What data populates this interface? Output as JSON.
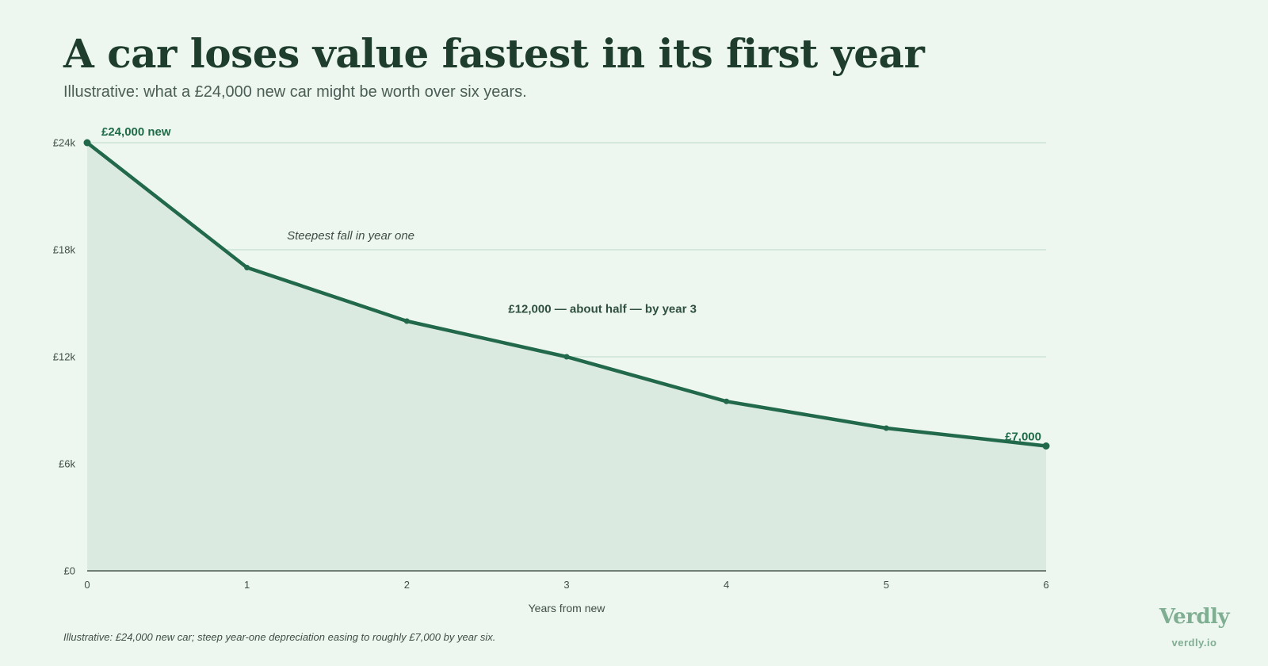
{
  "header": {
    "title": "A car loses value fastest in its first year",
    "subtitle": "Illustrative: what a £24,000 new car might be worth over six years."
  },
  "chart_data": {
    "type": "area",
    "xlabel": "Years from new",
    "ylabel": "",
    "x": [
      0,
      1,
      2,
      3,
      4,
      5,
      6
    ],
    "series": [
      {
        "values": [
          24000,
          17000,
          14000,
          12000,
          9500,
          8000,
          7000
        ]
      }
    ],
    "xlim": [
      0,
      6
    ],
    "ylim": [
      0,
      24000
    ],
    "x_ticks": [
      "0",
      "1",
      "2",
      "3",
      "4",
      "5",
      "6"
    ],
    "y_ticks": [
      {
        "value": 0,
        "label": "£0"
      },
      {
        "value": 6000,
        "label": "£6k"
      },
      {
        "value": 12000,
        "label": "£12k"
      },
      {
        "value": 18000,
        "label": "£18k"
      },
      {
        "value": 24000,
        "label": "£24k"
      }
    ],
    "grid": true,
    "annotations": [
      {
        "text": "£24,000 new",
        "x": 0,
        "y": 24000,
        "style": "bold"
      },
      {
        "text": "Steepest fall in year one",
        "x": 1.25,
        "y": 18800,
        "style": "italic"
      },
      {
        "text": "£12,000 — about half — by year 3",
        "x": 3.1,
        "y": 14700,
        "style": "bold"
      },
      {
        "text": "£7,000",
        "x": 6,
        "y": 7000,
        "style": "bold"
      }
    ],
    "colors": {
      "line": "#21694a",
      "area": "#dbeae0",
      "grid": "#c7e0d0",
      "axis": "#4c5a53"
    }
  },
  "footer": {
    "note": "Illustrative: £24,000 new car; steep year-one depreciation easing to roughly £7,000 by year six.",
    "brand": "Verdly",
    "url": "verdly.io"
  }
}
